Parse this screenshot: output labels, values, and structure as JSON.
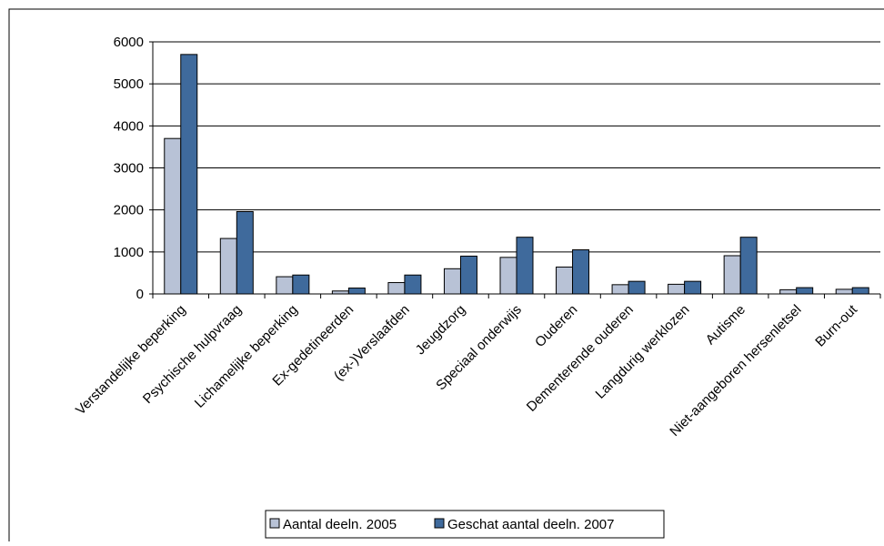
{
  "chart_data": {
    "type": "bar",
    "title": "",
    "xlabel": "",
    "ylabel": "",
    "ylim": [
      0,
      6000
    ],
    "yticks": [
      0,
      1000,
      2000,
      3000,
      4000,
      5000,
      6000
    ],
    "grid": "horizontal",
    "legend_position": "bottom",
    "categories": [
      "Verstandelijke beperking",
      "Psychische hulpvraag",
      "Lichamelijke beperking",
      "Ex-gedetineerden",
      "(ex-)Verslaafden",
      "Jeugdzorg",
      "Speciaal onderwijs",
      "Ouderen",
      "Dementerende ouderen",
      "Langdurig werklozen",
      "Autisme",
      "Niet-aangeboren hersenletsel",
      "Burn-out"
    ],
    "series": [
      {
        "name": "Aantal deeln. 2005",
        "color": "#b8c2d6",
        "values": [
          3700,
          1320,
          410,
          70,
          270,
          600,
          870,
          640,
          220,
          230,
          910,
          100,
          110
        ]
      },
      {
        "name": "Geschat aantal deeln. 2007",
        "color": "#3f6a9c",
        "values": [
          5700,
          1960,
          450,
          140,
          450,
          900,
          1350,
          1050,
          300,
          300,
          1350,
          150,
          150
        ]
      }
    ]
  }
}
